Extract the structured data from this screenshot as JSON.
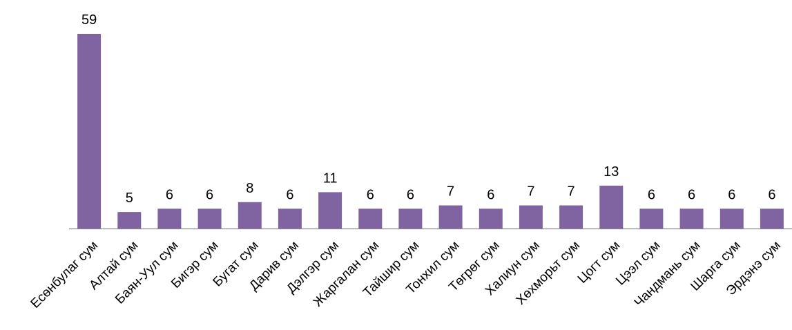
{
  "chart_data": {
    "type": "bar",
    "title": "",
    "xlabel": "",
    "ylabel": "",
    "categories": [
      "Есөнбулаг сум",
      "Алтай сум",
      "Баян-Уул сум",
      "Бигэр сум",
      "Бугат сум",
      "Дарив сум",
      "Дэлгэр сум",
      "Жаргалан сум",
      "Тайшир сум",
      "Тонхил сум",
      "Төгрөг сум",
      "Халиун сум",
      "Хөхморьт сум",
      "Цогт сум",
      "Цээл сум",
      "Чандмань сум",
      "Шарга сум",
      "Эрдэнэ сум"
    ],
    "values": [
      59,
      5,
      6,
      6,
      8,
      6,
      11,
      6,
      6,
      7,
      6,
      7,
      7,
      13,
      6,
      6,
      6,
      6
    ],
    "ylim": [
      0,
      59
    ],
    "grid": false,
    "legend": "none",
    "colors": {
      "bar": "#8064A2",
      "axis": "#868686"
    }
  }
}
